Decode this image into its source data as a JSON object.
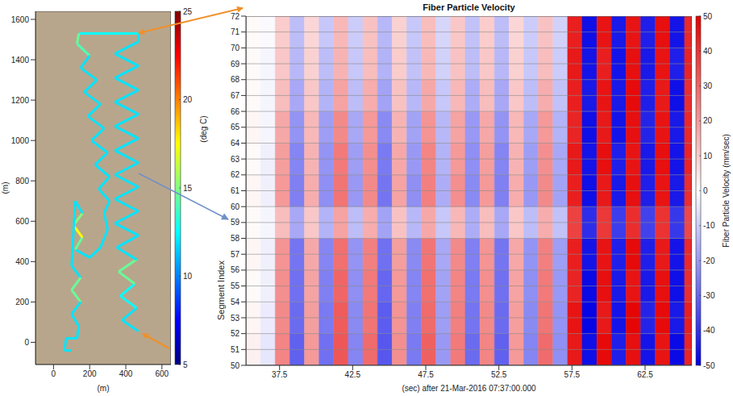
{
  "chart_data": [
    {
      "type": "path",
      "xlabel": "(m)",
      "ylabel": "(m)",
      "xlim": [
        -100,
        650
      ],
      "ylim": [
        -110,
        1640
      ],
      "xticks": [
        0,
        200,
        400,
        600
      ],
      "yticks": [
        0,
        200,
        400,
        600,
        800,
        1000,
        1200,
        1400,
        1600
      ],
      "x": [
        470,
        380,
        460,
        370,
        450,
        360,
        460,
        350,
        470,
        340,
        470,
        340,
        470,
        340,
        470,
        340,
        470,
        340,
        470,
        340,
        470,
        340,
        470,
        340,
        470,
        470,
        140,
        130,
        200,
        150,
        240,
        170,
        260,
        190,
        280,
        210,
        300,
        230,
        310,
        250,
        310,
        280,
        300,
        260,
        200,
        120,
        160,
        110,
        160,
        120,
        100,
        150,
        100,
        150,
        100,
        140,
        130,
        70,
        60,
        100
      ],
      "y": [
        55,
        110,
        170,
        230,
        290,
        350,
        410,
        470,
        530,
        590,
        650,
        710,
        770,
        830,
        890,
        950,
        1010,
        1070,
        1130,
        1190,
        1250,
        1310,
        1370,
        1430,
        1490,
        1530,
        1530,
        1480,
        1420,
        1360,
        1300,
        1240,
        1180,
        1120,
        1060,
        1000,
        940,
        880,
        820,
        760,
        700,
        640,
        560,
        470,
        420,
        460,
        520,
        580,
        640,
        700,
        380,
        320,
        260,
        200,
        140,
        80,
        20,
        20,
        -40,
        -40
      ],
      "temperature": [
        12,
        12,
        12,
        13,
        12,
        17,
        12,
        12,
        12,
        12,
        12,
        12,
        12,
        12,
        12,
        12,
        12,
        12,
        12,
        12,
        12,
        12,
        12,
        12,
        12,
        12,
        13,
        16,
        12,
        12,
        12,
        12,
        12,
        12,
        12,
        12,
        12,
        12,
        12,
        12,
        12,
        12,
        12,
        12,
        12,
        12,
        17,
        18,
        12,
        12,
        12,
        12,
        17,
        12,
        12,
        12,
        12,
        12,
        12,
        12
      ],
      "colorbar": {
        "label": "(deg C)",
        "range": [
          5,
          25
        ],
        "ticks": [
          5,
          10,
          15,
          20,
          25
        ]
      }
    },
    {
      "type": "heatmap",
      "title": "Fiber Particle Velocity",
      "xlabel": "(sec) after 21-Mar-2016 07:37:00.000",
      "ylabel": "Segment Index",
      "xlim": [
        35.2,
        65.7
      ],
      "ylim": [
        50,
        72
      ],
      "xticks": [
        37.5,
        42.5,
        47.5,
        52.5,
        57.5,
        62.5
      ],
      "yticks": [
        50,
        51,
        52,
        53,
        54,
        55,
        56,
        57,
        58,
        59,
        60,
        61,
        62,
        63,
        64,
        65,
        66,
        67,
        68,
        69,
        70,
        71,
        72
      ],
      "grid": true,
      "x_edges": [
        35.2,
        36.2,
        37.2,
        38.2,
        39.2,
        40.2,
        41.2,
        42.2,
        43.2,
        44.2,
        45.2,
        46.2,
        47.2,
        48.2,
        49.2,
        50.2,
        51.2,
        52.2,
        53.2,
        54.2,
        55.2,
        56.2,
        57.2,
        58.2,
        59.2,
        60.2,
        61.2,
        62.2,
        63.2,
        64.2,
        65.2,
        65.7
      ],
      "y_edges": [
        50,
        52,
        54,
        56,
        58,
        60,
        62,
        64,
        66,
        68,
        70,
        72
      ],
      "cells": [
        [
          3,
          -5,
          24,
          -31,
          20,
          -28,
          33,
          -24,
          29,
          -33,
          22,
          -26,
          31,
          -20,
          26,
          -29,
          24,
          -31,
          20,
          -24,
          29,
          -22,
          45,
          -47,
          48,
          -44,
          47,
          -46,
          46,
          -48,
          43
        ],
        [
          2,
          -4,
          23,
          -29,
          19,
          -26,
          32,
          -23,
          27,
          -32,
          21,
          -25,
          29,
          -19,
          25,
          -27,
          23,
          -29,
          19,
          -23,
          27,
          -21,
          46,
          -49,
          45,
          -46,
          49,
          -43,
          48,
          -45,
          44
        ],
        [
          1,
          -3,
          22,
          -28,
          18,
          -25,
          30,
          -22,
          26,
          -30,
          20,
          -24,
          28,
          -18,
          24,
          -26,
          22,
          -28,
          18,
          -22,
          26,
          -20,
          43,
          -48,
          47,
          -45,
          46,
          -45,
          47,
          -47,
          41
        ],
        [
          2,
          -3,
          21,
          -27,
          17,
          -24,
          28,
          -21,
          25,
          -28,
          19,
          -23,
          27,
          -17,
          23,
          -25,
          21,
          -27,
          17,
          -21,
          25,
          -19,
          44,
          -46,
          46,
          -44,
          48,
          -44,
          45,
          -46,
          42
        ],
        [
          1,
          -2,
          13,
          -17,
          11,
          -15,
          18,
          -13,
          16,
          -18,
          12,
          -14,
          17,
          -11,
          14,
          -16,
          13,
          -17,
          11,
          -13,
          16,
          -12,
          37,
          -41,
          39,
          -38,
          41,
          -37,
          40,
          -39,
          36
        ],
        [
          2,
          -3,
          20,
          -25,
          16,
          -22,
          27,
          -20,
          23,
          -27,
          18,
          -22,
          25,
          -16,
          22,
          -23,
          20,
          -25,
          16,
          -20,
          23,
          -18,
          44,
          -47,
          45,
          -45,
          47,
          -44,
          46,
          -45,
          41
        ],
        [
          1,
          -3,
          19,
          -24,
          15,
          -21,
          26,
          -19,
          22,
          -26,
          17,
          -20,
          24,
          -15,
          20,
          -22,
          19,
          -24,
          15,
          -19,
          22,
          -17,
          45,
          -46,
          47,
          -44,
          46,
          -45,
          47,
          -46,
          43
        ],
        [
          2,
          -2,
          17,
          -21,
          14,
          -19,
          23,
          -17,
          20,
          -23,
          15,
          -18,
          21,
          -14,
          18,
          -20,
          17,
          -21,
          14,
          -17,
          20,
          -15,
          43,
          -47,
          45,
          -46,
          47,
          -43,
          46,
          -45,
          42
        ],
        [
          1,
          -2,
          13,
          -17,
          11,
          -15,
          18,
          -13,
          16,
          -18,
          12,
          -14,
          17,
          -11,
          14,
          -16,
          13,
          -17,
          11,
          -13,
          16,
          -12,
          44,
          -45,
          46,
          -45,
          48,
          -44,
          45,
          -47,
          41
        ],
        [
          1,
          -2,
          11,
          -14,
          9,
          -13,
          15,
          -11,
          13,
          -15,
          10,
          -12,
          14,
          -9,
          12,
          -13,
          11,
          -14,
          9,
          -11,
          13,
          -10,
          45,
          -46,
          44,
          -46,
          47,
          -45,
          46,
          -44,
          43
        ],
        [
          1,
          -1,
          10,
          -13,
          8,
          -11,
          14,
          -10,
          12,
          -14,
          9,
          -11,
          13,
          -8,
          11,
          -12,
          10,
          -13,
          8,
          -10,
          12,
          -9,
          44,
          -47,
          46,
          -45,
          46,
          -44,
          47,
          -46,
          42
        ]
      ],
      "colorbar": {
        "label": "Fiber Particle Velocity (mm/sec)",
        "range": [
          -50,
          50
        ],
        "ticks": [
          -50,
          -40,
          -30,
          -20,
          -10,
          0,
          10,
          20,
          30,
          40,
          50
        ]
      }
    }
  ]
}
